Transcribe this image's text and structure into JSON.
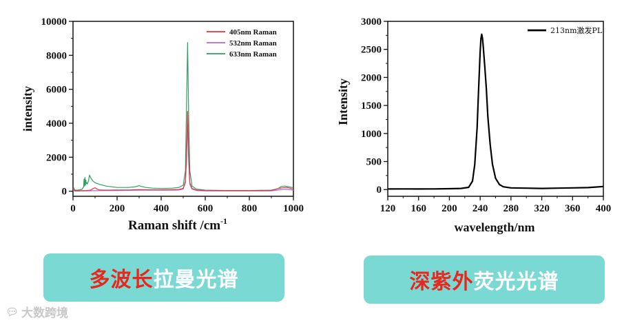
{
  "chart_data": [
    {
      "type": "line",
      "xlabel": "Raman shift /cm",
      "xlabel_sup": "-1",
      "ylabel": "intensity",
      "xlim": [
        0,
        1000
      ],
      "ylim": [
        -300,
        10000
      ],
      "xticks": [
        "0",
        "200",
        "400",
        "600",
        "800",
        "1000"
      ],
      "yticks": [
        "0",
        "2000",
        "4000",
        "6000",
        "8000",
        "10000"
      ],
      "legend_position": "top-right",
      "series": [
        {
          "name": "405nm Raman",
          "color": "#e8323c",
          "x": [
            0,
            5,
            10,
            20,
            40,
            60,
            80,
            90,
            100,
            110,
            120,
            150,
            200,
            250,
            300,
            350,
            400,
            450,
            480,
            500,
            510,
            515,
            520,
            525,
            530,
            540,
            560,
            600,
            700,
            800,
            900,
            930,
            950,
            970,
            985,
            1000
          ],
          "y": [
            260,
            60,
            20,
            20,
            30,
            40,
            60,
            150,
            200,
            120,
            70,
            60,
            70,
            75,
            90,
            80,
            80,
            90,
            100,
            170,
            600,
            2200,
            4700,
            2000,
            500,
            160,
            60,
            40,
            30,
            30,
            40,
            150,
            200,
            220,
            180,
            120
          ]
        },
        {
          "name": "532nm Raman",
          "color": "#b36ad8",
          "x": [
            0,
            5,
            10,
            20,
            40,
            60,
            80,
            100,
            150,
            200,
            250,
            300,
            350,
            400,
            450,
            480,
            500,
            510,
            515,
            520,
            525,
            530,
            540,
            560,
            600,
            700,
            800,
            900,
            930,
            950,
            970,
            985,
            1000
          ],
          "y": [
            200,
            30,
            10,
            10,
            15,
            20,
            25,
            30,
            35,
            40,
            50,
            60,
            55,
            55,
            60,
            70,
            120,
            500,
            1800,
            4000,
            1700,
            400,
            120,
            40,
            20,
            15,
            15,
            20,
            70,
            100,
            110,
            90,
            60
          ]
        },
        {
          "name": "633nm Raman",
          "color": "#2e9e62",
          "x": [
            0,
            3,
            6,
            10,
            20,
            40,
            48,
            50,
            52,
            54,
            56,
            58,
            60,
            62,
            65,
            70,
            75,
            80,
            90,
            100,
            120,
            150,
            200,
            250,
            280,
            300,
            310,
            330,
            360,
            400,
            450,
            480,
            500,
            510,
            515,
            520,
            525,
            530,
            540,
            560,
            600,
            700,
            800,
            900,
            930,
            945,
            960,
            980,
            1000
          ],
          "y": [
            0,
            220,
            100,
            60,
            60,
            100,
            250,
            700,
            300,
            800,
            350,
            650,
            450,
            500,
            420,
            600,
            950,
            800,
            600,
            500,
            400,
            300,
            220,
            220,
            250,
            330,
            280,
            220,
            180,
            160,
            180,
            220,
            350,
            1200,
            5000,
            8750,
            4200,
            1200,
            300,
            120,
            60,
            40,
            40,
            60,
            150,
            280,
            300,
            260,
            200
          ]
        }
      ]
    },
    {
      "type": "line",
      "xlabel": "wavelength/nm",
      "ylabel": "Intensity",
      "xlim": [
        120,
        400
      ],
      "ylim": [
        -120,
        3000
      ],
      "xticks": [
        "120",
        "160",
        "200",
        "240",
        "280",
        "320",
        "360",
        "400"
      ],
      "yticks": [
        "0",
        "500",
        "1000",
        "1500",
        "2000",
        "2500",
        "3000"
      ],
      "legend_position": "top-right",
      "series": [
        {
          "name": "213nm激发PL",
          "color": "#000000",
          "x": [
            120,
            140,
            160,
            180,
            200,
            215,
            225,
            230,
            233,
            236,
            238,
            240,
            241,
            242,
            243,
            244,
            246,
            248,
            250,
            253,
            256,
            260,
            265,
            270,
            280,
            300,
            320,
            340,
            360,
            380,
            390,
            400
          ],
          "y": [
            10,
            12,
            10,
            12,
            15,
            20,
            40,
            150,
            450,
            1100,
            1800,
            2450,
            2700,
            2770,
            2700,
            2550,
            2200,
            1800,
            1300,
            800,
            450,
            200,
            90,
            50,
            30,
            25,
            20,
            25,
            30,
            35,
            45,
            55
          ]
        }
      ]
    }
  ],
  "captions": {
    "left": {
      "red": "多波长",
      "white": "拉曼光谱"
    },
    "right": {
      "red": "深紫外",
      "white": "荧光光谱"
    }
  },
  "watermark": {
    "text": "大数跨境",
    "icon": "chat-bubble-icon"
  }
}
